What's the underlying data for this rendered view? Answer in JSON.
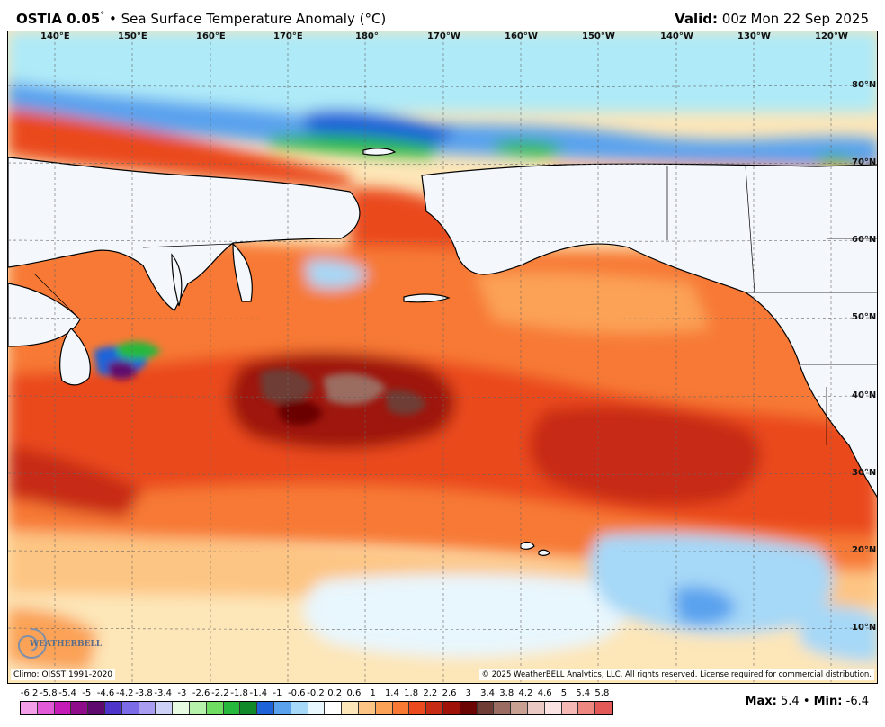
{
  "header": {
    "product": "OSTIA 0.05",
    "degree_mark": "°",
    "bullet": "•",
    "field": "Sea Surface Temperature Anomaly (°C)",
    "valid_label": "Valid:",
    "valid_value": "00z Mon 22 Sep 2025"
  },
  "map": {
    "lon_labels": [
      "140°E",
      "150°E",
      "160°E",
      "170°E",
      "180°",
      "170°W",
      "160°W",
      "150°W",
      "140°W",
      "130°W",
      "120°W"
    ],
    "lat_labels": [
      "80°N",
      "70°N",
      "60°N",
      "50°N",
      "40°N",
      "30°N",
      "20°N",
      "10°N"
    ],
    "climo": "Climo: OISST 1991-2020",
    "copyright": "© 2025 WeatherBELL Analytics, LLC. All rights reserved. License required for commercial distribution.",
    "logo": "WEATHERBELL"
  },
  "legend": {
    "labels": [
      "-6.2",
      "-5.8",
      "-5.4",
      "-5",
      "-4.6",
      "-4.2",
      "-3.8",
      "-3.4",
      "-3",
      "-2.6",
      "-2.2",
      "-1.8",
      "-1.4",
      "-1",
      "-0.6",
      "-0.2",
      "0.2",
      "0.6",
      "1",
      "1.4",
      "1.8",
      "2.2",
      "2.6",
      "3",
      "3.4",
      "3.8",
      "4.2",
      "4.6",
      "5",
      "5.4",
      "5.8"
    ],
    "colors": [
      "#f39ee9",
      "#e25ad8",
      "#c51cb8",
      "#8f0d8a",
      "#5f0a6e",
      "#4e34c9",
      "#7b6be6",
      "#a89df0",
      "#cdd0f7",
      "#e7fbe2",
      "#b6f2a9",
      "#6fdc62",
      "#25b83d",
      "#118a2a",
      "#1f63d9",
      "#5aa2ee",
      "#a6d8f7",
      "#e8f6fd",
      "#ffffff",
      "#fde6b8",
      "#fdc583",
      "#fba257",
      "#f77934",
      "#ea4a1e",
      "#c72b13",
      "#9e1208",
      "#6b0504",
      "#6e3c34",
      "#9b6c61",
      "#c9a193",
      "#eac8c3",
      "#fbe3e3",
      "#f6b8b4",
      "#ef8781",
      "#e25958"
    ]
  },
  "stats": {
    "max_label": "Max:",
    "max_value": "5.4",
    "separator": "•",
    "min_label": "Min:",
    "min_value": "-6.4"
  }
}
